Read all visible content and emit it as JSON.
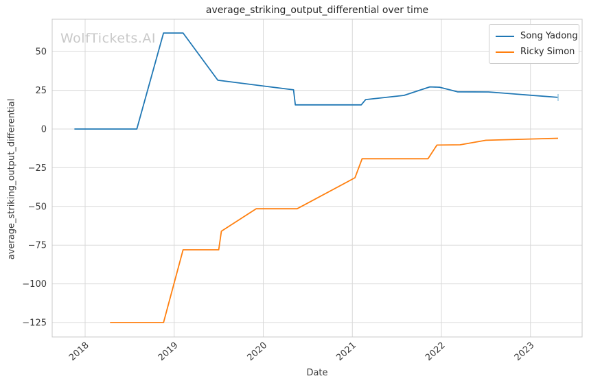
{
  "watermark": "WolfTickets.AI",
  "chart_data": {
    "type": "line",
    "title": "average_striking_output_differential over time",
    "xlabel": "Date",
    "ylabel": "average_striking_output_differential",
    "grid": true,
    "legend_position": "upper right",
    "xlim": [
      2017.63,
      2023.58
    ],
    "ylim": [
      -134.3,
      70.9
    ],
    "x_ticks": [
      2018,
      2019,
      2020,
      2021,
      2022,
      2023
    ],
    "y_ticks": [
      50,
      25,
      0,
      -25,
      -50,
      -75,
      -100,
      -125
    ],
    "series": [
      {
        "name": "Song Yadong",
        "color": "#1f77b4",
        "points": [
          [
            2017.88,
            0
          ],
          [
            2018.58,
            0
          ],
          [
            2018.88,
            62
          ],
          [
            2019.1,
            62
          ],
          [
            2019.49,
            31.5
          ],
          [
            2020.34,
            25.3
          ],
          [
            2020.36,
            15.6
          ],
          [
            2021.1,
            15.6
          ],
          [
            2021.15,
            19.0
          ],
          [
            2021.58,
            21.7
          ],
          [
            2021.87,
            27.2
          ],
          [
            2021.98,
            27.0
          ],
          [
            2022.18,
            24.0
          ],
          [
            2022.53,
            23.9
          ],
          [
            2023.31,
            20.4
          ]
        ]
      },
      {
        "name": "Ricky Simon",
        "color": "#ff7f0e",
        "points": [
          [
            2018.28,
            -125
          ],
          [
            2018.88,
            -125
          ],
          [
            2019.1,
            -78
          ],
          [
            2019.5,
            -78
          ],
          [
            2019.53,
            -66
          ],
          [
            2019.92,
            -51.5
          ],
          [
            2020.38,
            -51.5
          ],
          [
            2021.03,
            -31.5
          ],
          [
            2021.11,
            -19.2
          ],
          [
            2021.85,
            -19.2
          ],
          [
            2021.95,
            -10.4
          ],
          [
            2022.21,
            -10.2
          ],
          [
            2022.5,
            -7.3
          ],
          [
            2023.31,
            -6.0
          ]
        ]
      }
    ]
  }
}
